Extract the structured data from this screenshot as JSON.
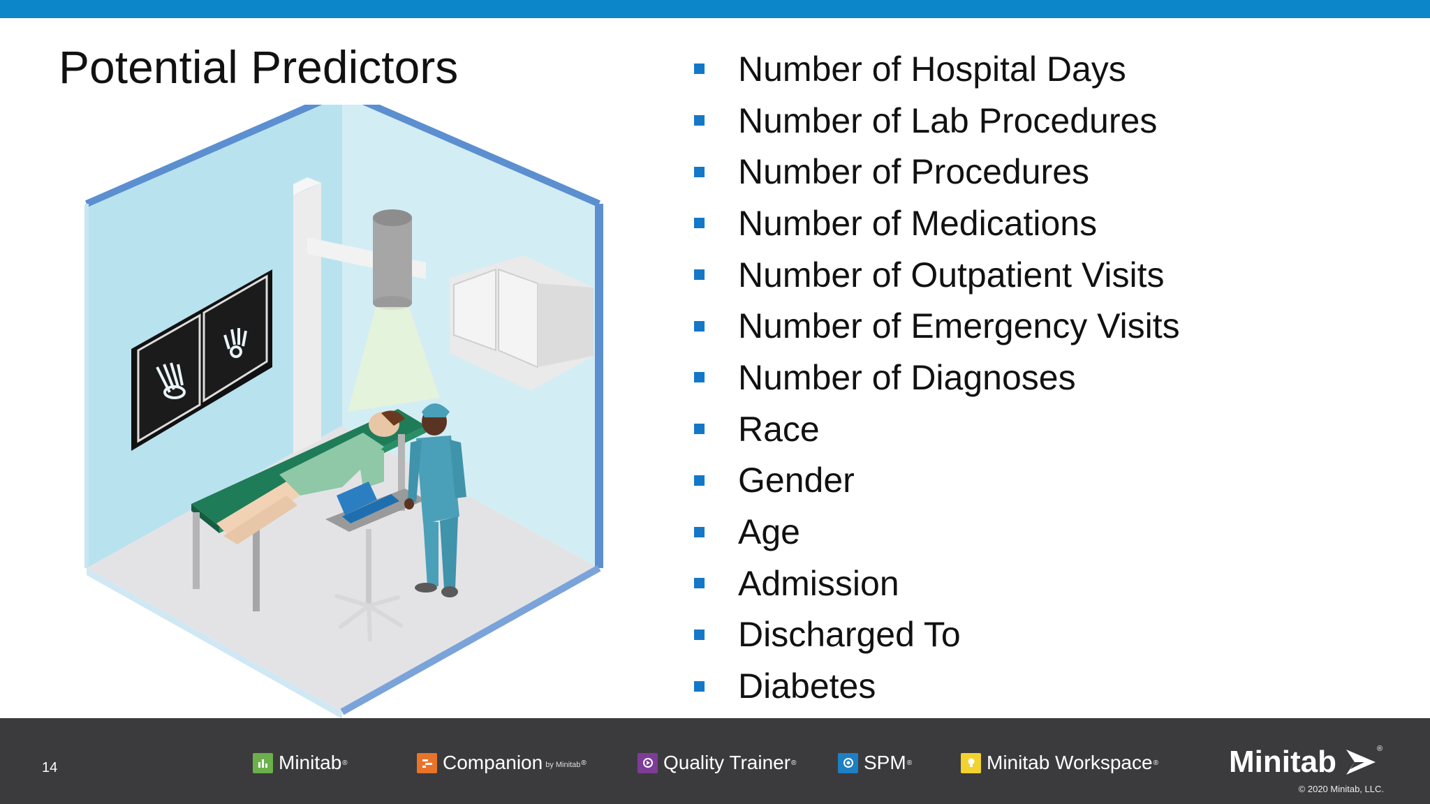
{
  "slide": {
    "title": "Potential Predictors",
    "predictors": [
      "Number of Hospital Days",
      "Number of Lab Procedures",
      "Number of Procedures",
      "Number of Medications",
      "Number of Outpatient Visits",
      "Number of Emergency Visits",
      "Number of Diagnoses",
      "Race",
      "Gender",
      "Age",
      "Admission",
      "Discharged To",
      "Diabetes"
    ],
    "bullet_color": "#1478c8"
  },
  "footer": {
    "page_number": "14",
    "products": {
      "minitab": "Minitab",
      "companion": "Companion",
      "companion_by": "by Minitab",
      "quality_trainer": "Quality Trainer",
      "spm": "SPM",
      "workspace": "Minitab Workspace"
    },
    "registered": "®",
    "brand": "Minitab",
    "copyright": "© 2020 Minitab, LLC."
  },
  "colors": {
    "top_bar": "#0d86c9",
    "footer_bg": "#3b3b3d"
  }
}
